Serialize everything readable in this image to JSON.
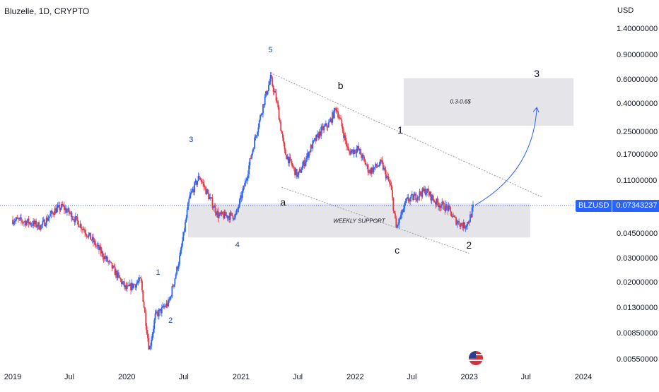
{
  "header": {
    "title": "Bluzelle, 1D, CRYPTO",
    "currency": "USD"
  },
  "price_tag": {
    "symbol": "BLZUSD",
    "value": "0.07343237"
  },
  "colors": {
    "up": "#2962ff",
    "down": "#e53945",
    "zone": "#e0e1e5",
    "arrow": "#2962ff",
    "channel": "#9b9b9b",
    "price_line": "#2962ff"
  },
  "flag_icon": "us-flag-icon",
  "chart_data": {
    "type": "candlestick",
    "title": "Bluzelle, 1D, CRYPTO",
    "yscale": "log",
    "ylim": [
      0.0045,
      1.8
    ],
    "xlim": [
      "2019-01-01",
      "2024-05-01"
    ],
    "y_ticks": [
      "1.40000000",
      "0.90000000",
      "0.60000000",
      "0.40000000",
      "0.25000000",
      "0.17000000",
      "0.11000000",
      "0.07343237",
      "0.04500000",
      "0.03000000",
      "0.02000000",
      "0.01300000",
      "0.00850000",
      "0.00550000"
    ],
    "x_ticks": [
      "2019",
      "Jul",
      "2020",
      "Jul",
      "2021",
      "Jul",
      "2022",
      "Jul",
      "2023",
      "Jul",
      "2024"
    ],
    "approx_price_path": [
      {
        "date": "2019-01-01",
        "close": 0.058
      },
      {
        "date": "2019-02-15",
        "close": 0.056
      },
      {
        "date": "2019-04-01",
        "close": 0.052
      },
      {
        "date": "2019-05-15",
        "close": 0.068
      },
      {
        "date": "2019-06-10",
        "close": 0.072
      },
      {
        "date": "2019-07-10",
        "close": 0.062
      },
      {
        "date": "2019-08-15",
        "close": 0.05
      },
      {
        "date": "2019-10-01",
        "close": 0.036
      },
      {
        "date": "2019-11-15",
        "close": 0.026
      },
      {
        "date": "2019-12-31",
        "close": 0.018
      },
      {
        "date": "2020-02-15",
        "close": 0.021
      },
      {
        "date": "2020-03-13",
        "close": 0.0065
      },
      {
        "date": "2020-04-01",
        "close": 0.0115
      },
      {
        "date": "2020-05-15",
        "close": 0.0145
      },
      {
        "date": "2020-06-20",
        "close": 0.032
      },
      {
        "date": "2020-07-20",
        "close": 0.085
      },
      {
        "date": "2020-08-20",
        "close": 0.12
      },
      {
        "date": "2020-09-20",
        "close": 0.085
      },
      {
        "date": "2020-10-20",
        "close": 0.062
      },
      {
        "date": "2020-12-15",
        "close": 0.062
      },
      {
        "date": "2021-01-15",
        "close": 0.11
      },
      {
        "date": "2021-02-15",
        "close": 0.23
      },
      {
        "date": "2021-03-15",
        "close": 0.42
      },
      {
        "date": "2021-04-05",
        "close": 0.62
      },
      {
        "date": "2021-04-25",
        "close": 0.42
      },
      {
        "date": "2021-05-20",
        "close": 0.18
      },
      {
        "date": "2021-07-01",
        "close": 0.12
      },
      {
        "date": "2021-08-15",
        "close": 0.2
      },
      {
        "date": "2021-09-15",
        "close": 0.26
      },
      {
        "date": "2021-10-10",
        "close": 0.29
      },
      {
        "date": "2021-11-01",
        "close": 0.38
      },
      {
        "date": "2021-11-15",
        "close": 0.3
      },
      {
        "date": "2021-12-10",
        "close": 0.18
      },
      {
        "date": "2022-01-10",
        "close": 0.19
      },
      {
        "date": "2022-02-15",
        "close": 0.13
      },
      {
        "date": "2022-03-25",
        "close": 0.15
      },
      {
        "date": "2022-04-25",
        "close": 0.1
      },
      {
        "date": "2022-05-12",
        "close": 0.05
      },
      {
        "date": "2022-06-15",
        "close": 0.08
      },
      {
        "date": "2022-07-10",
        "close": 0.085
      },
      {
        "date": "2022-08-15",
        "close": 0.095
      },
      {
        "date": "2022-09-15",
        "close": 0.078
      },
      {
        "date": "2022-10-25",
        "close": 0.07
      },
      {
        "date": "2022-11-15",
        "close": 0.058
      },
      {
        "date": "2022-12-15",
        "close": 0.052
      },
      {
        "date": "2022-12-31",
        "close": 0.057
      },
      {
        "date": "2023-01-15",
        "close": 0.073
      }
    ],
    "annotations": {
      "zones": [
        {
          "name": "weekly-support",
          "label": "WEEKLY SUPPORT",
          "x0": "2020-07-15",
          "x1": "2023-07-15",
          "y0": 0.043,
          "y1": 0.076
        },
        {
          "name": "target-zone",
          "label": "0.3-0.6$",
          "x0": "2022-06-05",
          "x1": "2023-12-01",
          "y0": 0.28,
          "y1": 0.62
        }
      ],
      "channel_lines": [
        {
          "name": "upper-channel-line",
          "points": [
            [
              "2021-04-05",
              0.68
            ],
            [
              "2023-08-20",
              0.085
            ]
          ]
        },
        {
          "name": "lower-channel-line",
          "points": [
            [
              "2021-05-10",
              0.1
            ],
            [
              "2022-12-31",
              0.033
            ]
          ]
        }
      ],
      "price_line": 0.07343237,
      "projection_arrow": {
        "from": [
          "2023-01-20",
          0.074
        ],
        "control": [
          "2023-07-25",
          0.13
        ],
        "to": [
          "2023-08-05",
          0.38
        ]
      },
      "wave_labels": [
        {
          "text": "5",
          "date": "2021-04-05",
          "price": 0.99,
          "color": "blue"
        },
        {
          "text": "3",
          "date": "2020-07-25",
          "price": 0.22,
          "color": "blue"
        },
        {
          "text": "4",
          "date": "2020-12-20",
          "price": 0.038,
          "color": "blue"
        },
        {
          "text": "1",
          "date": "2020-04-10",
          "price": 0.024,
          "color": "blue"
        },
        {
          "text": "2",
          "date": "2020-05-20",
          "price": 0.0107,
          "color": "blue"
        },
        {
          "text": "b",
          "date": "2021-11-15",
          "price": 0.55,
          "color": "black"
        },
        {
          "text": "a",
          "date": "2021-05-15",
          "price": 0.078,
          "color": "black"
        },
        {
          "text": "c",
          "date": "2022-05-15",
          "price": 0.035,
          "color": "black"
        },
        {
          "text": "1",
          "date": "2022-05-25",
          "price": 0.26,
          "color": "black"
        },
        {
          "text": "2",
          "date": "2022-12-31",
          "price": 0.038,
          "color": "black"
        },
        {
          "text": "3",
          "date": "2023-08-05",
          "price": 0.67,
          "color": "black"
        }
      ]
    }
  }
}
